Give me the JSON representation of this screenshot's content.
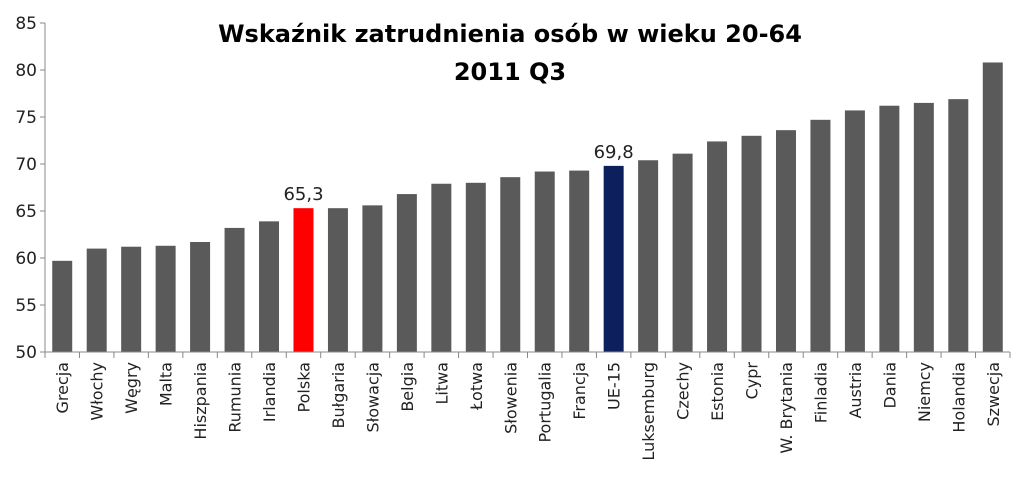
{
  "chart_data": {
    "type": "bar",
    "title": "Wskaźnik zatrudnienia osób w wieku 20-64",
    "subtitle": "2011 Q3",
    "xlabel": "",
    "ylabel": "",
    "ylim": [
      50,
      85
    ],
    "yticks": [
      50,
      55,
      60,
      65,
      70,
      75,
      80,
      85
    ],
    "grid": false,
    "categories": [
      "Grecja",
      "Włochy",
      "Węgry",
      "Malta",
      "Hiszpania",
      "Rumunia",
      "Irlandia",
      "Polska",
      "Bułgaria",
      "Słowacja",
      "Belgia",
      "Litwa",
      "Łotwa",
      "Słowenia",
      "Portugalia",
      "Francja",
      "UE-15",
      "Luksemburg",
      "Czechy",
      "Estonia",
      "Cypr",
      "W. Brytania",
      "Finladia",
      "Austria",
      "Dania",
      "Niemcy",
      "Holandia",
      "Szwecja"
    ],
    "values": [
      59.7,
      61.0,
      61.2,
      61.3,
      61.7,
      63.2,
      63.9,
      65.3,
      65.3,
      65.6,
      66.8,
      67.9,
      68.0,
      68.6,
      69.2,
      69.3,
      69.8,
      70.4,
      71.1,
      72.4,
      73.0,
      73.6,
      74.7,
      75.7,
      76.2,
      76.5,
      76.9,
      80.8
    ],
    "default_color": "#5a5a5a",
    "highlights": [
      {
        "category": "Polska",
        "color": "#ff0000",
        "label": "65,3"
      },
      {
        "category": "UE-15",
        "color": "#0d1f5c",
        "label": "69,8"
      }
    ]
  }
}
